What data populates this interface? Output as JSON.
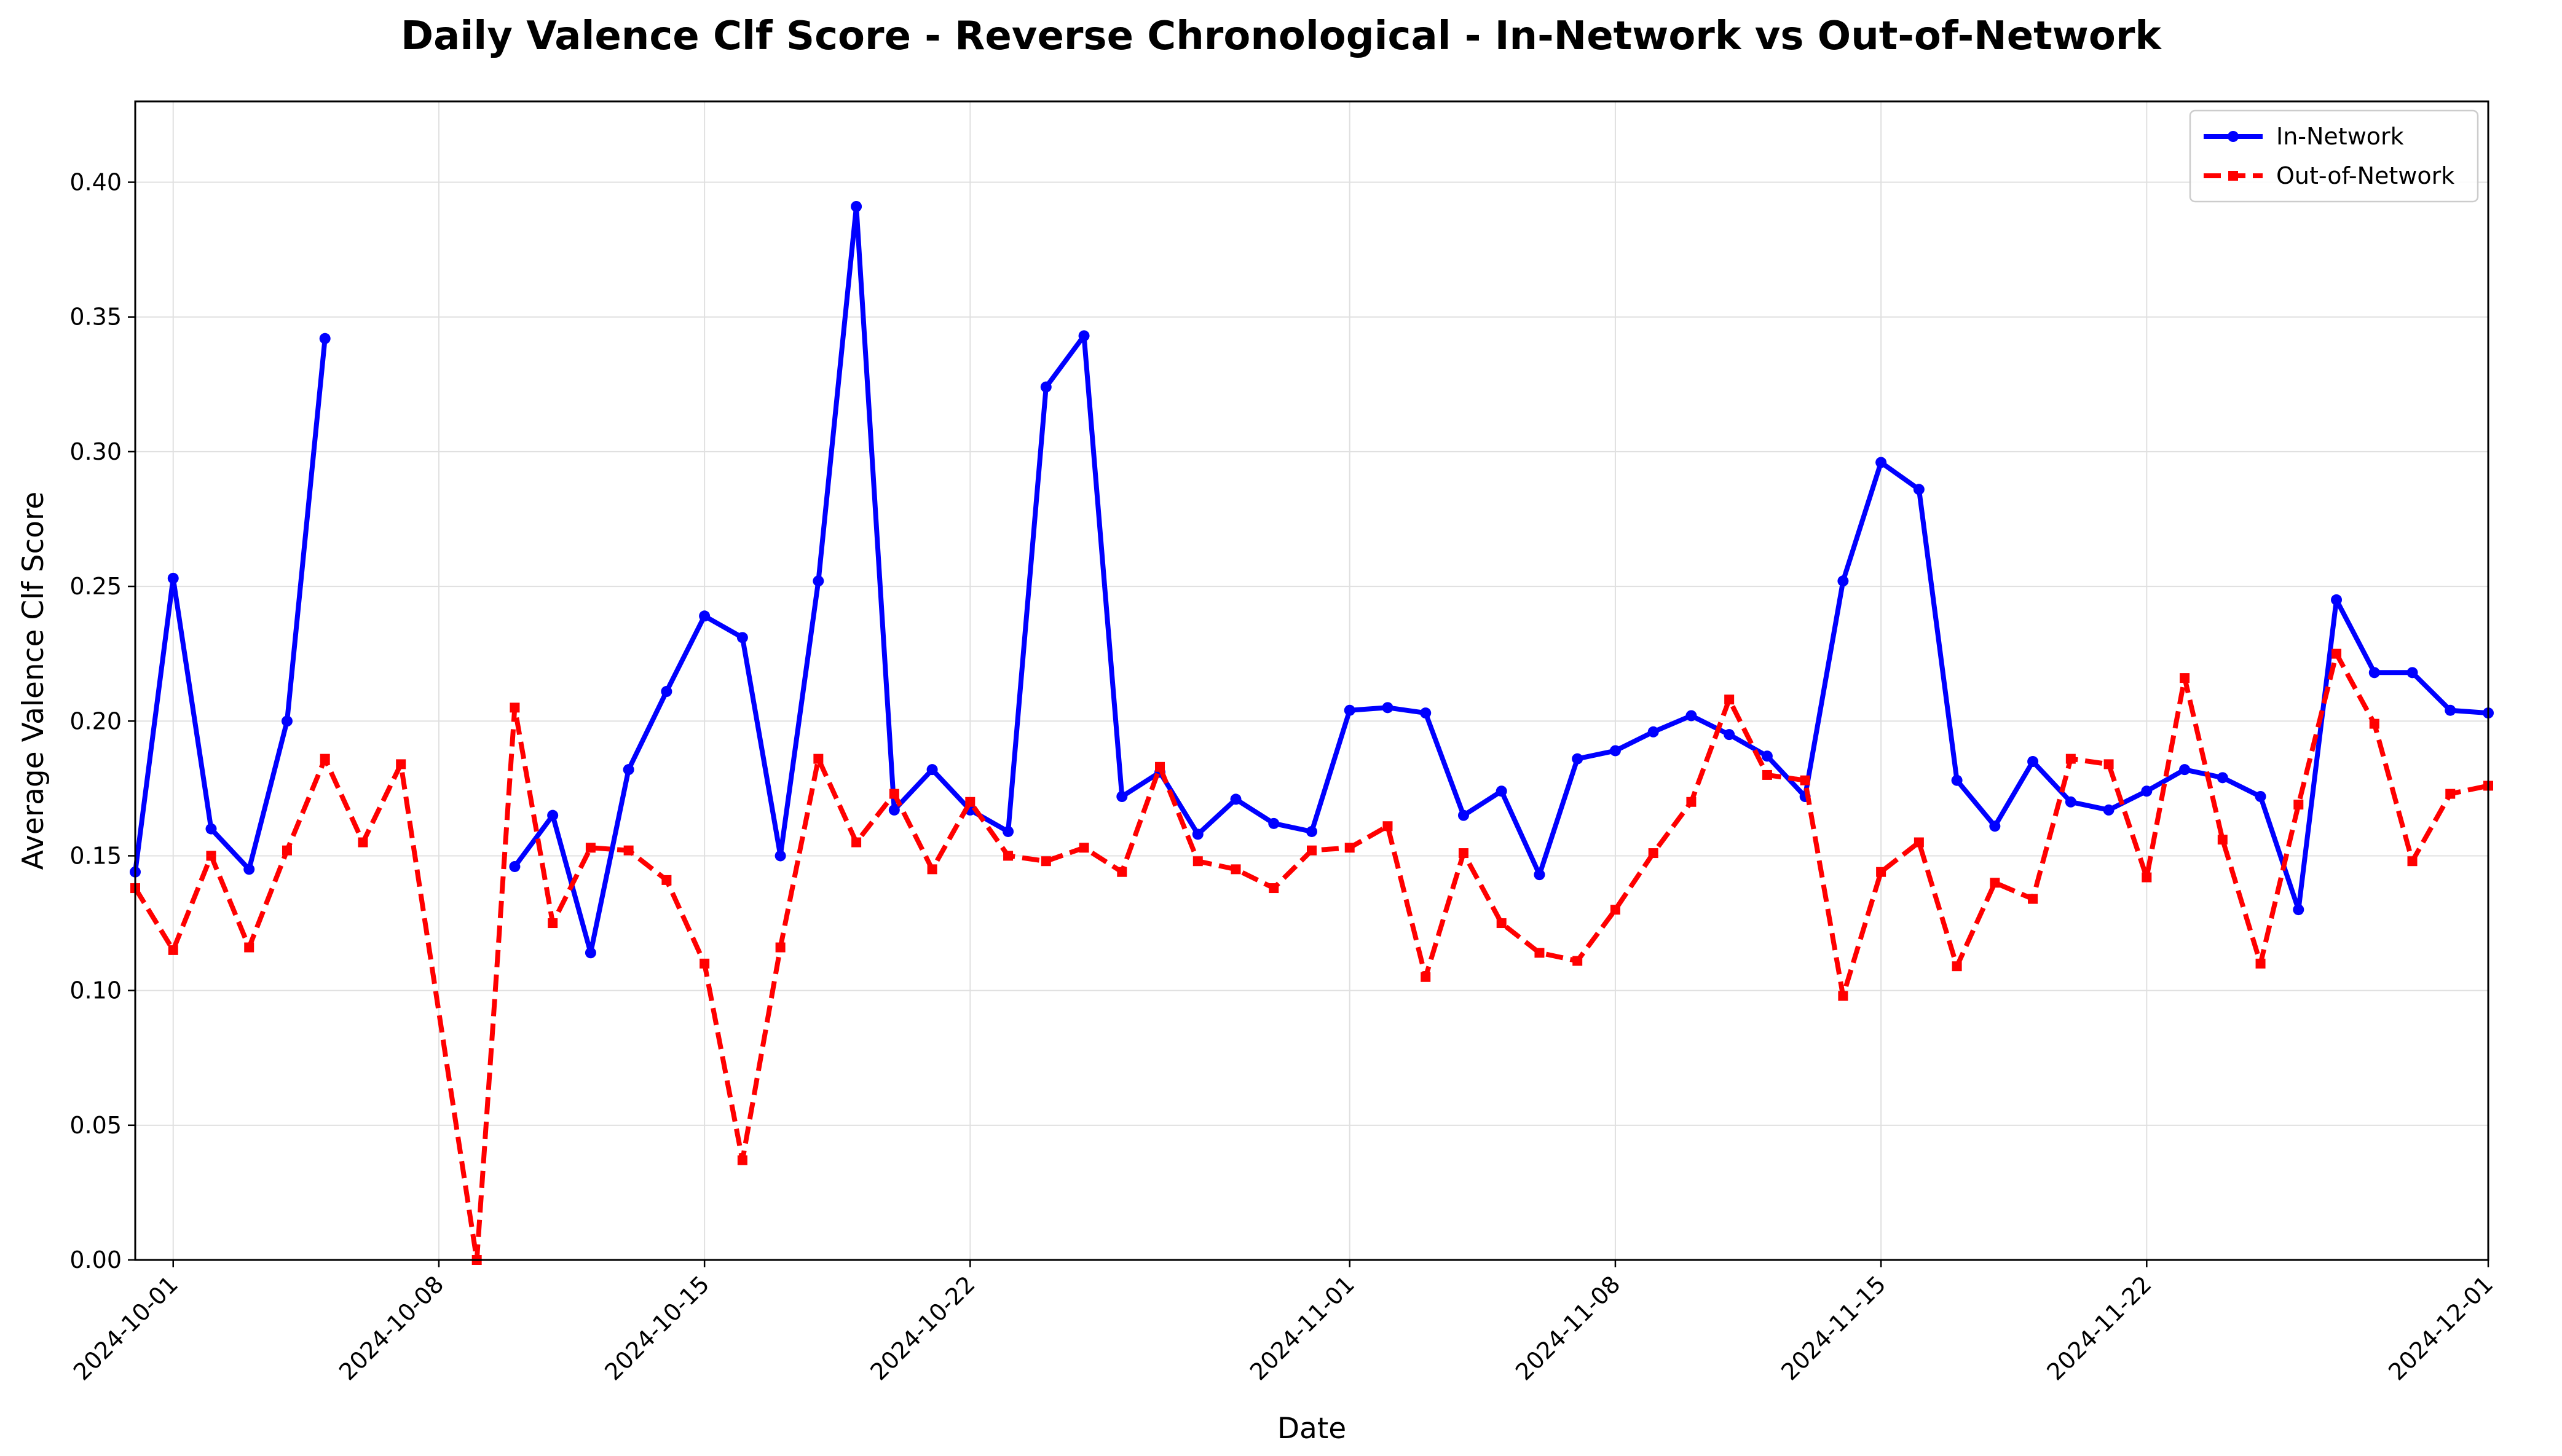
{
  "chart_data": {
    "type": "line",
    "title": "Daily Valence Clf Score - Reverse Chronological - In-Network vs Out-of-Network",
    "xlabel": "Date",
    "ylabel": "Average Valence Clf Score",
    "xlim": [
      "2024-09-30",
      "2024-12-01"
    ],
    "ylim": [
      0,
      0.43
    ],
    "x_ticks": [
      "2024-10-01",
      "2024-10-08",
      "2024-10-15",
      "2024-10-22",
      "2024-11-01",
      "2024-11-08",
      "2024-11-15",
      "2024-11-22",
      "2024-12-01"
    ],
    "y_ticks": [
      "0.00",
      "0.05",
      "0.10",
      "0.15",
      "0.20",
      "0.25",
      "0.30",
      "0.35",
      "0.40"
    ],
    "grid": true,
    "legend_position": "top-right",
    "series": [
      {
        "name": "In-Network",
        "color": "#0000ff",
        "line_style": "solid",
        "marker": "circle",
        "points": [
          [
            "2024-09-30",
            0.144
          ],
          [
            "2024-10-01",
            0.253
          ],
          [
            "2024-10-02",
            0.16
          ],
          [
            "2024-10-03",
            0.145
          ],
          [
            "2024-10-04",
            0.2
          ],
          [
            "2024-10-05",
            0.342
          ],
          null,
          [
            "2024-10-10",
            0.146
          ],
          [
            "2024-10-11",
            0.165
          ],
          [
            "2024-10-12",
            0.114
          ],
          [
            "2024-10-13",
            0.182
          ],
          [
            "2024-10-14",
            0.211
          ],
          [
            "2024-10-15",
            0.239
          ],
          [
            "2024-10-16",
            0.231
          ],
          [
            "2024-10-17",
            0.15
          ],
          [
            "2024-10-18",
            0.252
          ],
          [
            "2024-10-19",
            0.391
          ],
          [
            "2024-10-20",
            0.167
          ],
          [
            "2024-10-21",
            0.182
          ],
          [
            "2024-10-22",
            0.167
          ],
          [
            "2024-10-23",
            0.159
          ],
          [
            "2024-10-24",
            0.324
          ],
          [
            "2024-10-25",
            0.343
          ],
          [
            "2024-10-26",
            0.172
          ],
          [
            "2024-10-27",
            0.181
          ],
          [
            "2024-10-28",
            0.158
          ],
          [
            "2024-10-29",
            0.171
          ],
          [
            "2024-10-30",
            0.162
          ],
          [
            "2024-10-31",
            0.159
          ],
          [
            "2024-11-01",
            0.204
          ],
          [
            "2024-11-02",
            0.205
          ],
          [
            "2024-11-03",
            0.203
          ],
          [
            "2024-11-04",
            0.165
          ],
          [
            "2024-11-05",
            0.174
          ],
          [
            "2024-11-06",
            0.143
          ],
          [
            "2024-11-07",
            0.186
          ],
          [
            "2024-11-08",
            0.189
          ],
          [
            "2024-11-09",
            0.196
          ],
          [
            "2024-11-10",
            0.202
          ],
          [
            "2024-11-11",
            0.195
          ],
          [
            "2024-11-12",
            0.187
          ],
          [
            "2024-11-13",
            0.172
          ],
          [
            "2024-11-14",
            0.252
          ],
          [
            "2024-11-15",
            0.296
          ],
          [
            "2024-11-16",
            0.286
          ],
          [
            "2024-11-17",
            0.178
          ],
          [
            "2024-11-18",
            0.161
          ],
          [
            "2024-11-19",
            0.185
          ],
          [
            "2024-11-20",
            0.17
          ],
          [
            "2024-11-21",
            0.167
          ],
          [
            "2024-11-22",
            0.174
          ],
          [
            "2024-11-23",
            0.182
          ],
          [
            "2024-11-24",
            0.179
          ],
          [
            "2024-11-25",
            0.172
          ],
          [
            "2024-11-26",
            0.13
          ],
          [
            "2024-11-27",
            0.245
          ],
          [
            "2024-11-28",
            0.218
          ],
          [
            "2024-11-29",
            0.218
          ],
          [
            "2024-11-30",
            0.204
          ],
          [
            "2024-12-01",
            0.203
          ]
        ]
      },
      {
        "name": "Out-of-Network",
        "color": "#ff0000",
        "line_style": "dashed",
        "marker": "square",
        "points": [
          [
            "2024-09-30",
            0.138
          ],
          [
            "2024-10-01",
            0.115
          ],
          [
            "2024-10-02",
            0.15
          ],
          [
            "2024-10-03",
            0.116
          ],
          [
            "2024-10-04",
            0.152
          ],
          [
            "2024-10-05",
            0.186
          ],
          [
            "2024-10-06",
            0.155
          ],
          [
            "2024-10-07",
            0.184
          ],
          [
            "2024-10-09",
            0.0
          ],
          [
            "2024-10-10",
            0.205
          ],
          [
            "2024-10-11",
            0.125
          ],
          [
            "2024-10-12",
            0.153
          ],
          [
            "2024-10-13",
            0.152
          ],
          [
            "2024-10-14",
            0.141
          ],
          [
            "2024-10-15",
            0.11
          ],
          [
            "2024-10-16",
            0.037
          ],
          [
            "2024-10-17",
            0.116
          ],
          [
            "2024-10-18",
            0.186
          ],
          [
            "2024-10-19",
            0.155
          ],
          [
            "2024-10-20",
            0.173
          ],
          [
            "2024-10-21",
            0.145
          ],
          [
            "2024-10-22",
            0.17
          ],
          [
            "2024-10-23",
            0.15
          ],
          [
            "2024-10-24",
            0.148
          ],
          [
            "2024-10-25",
            0.153
          ],
          [
            "2024-10-26",
            0.144
          ],
          [
            "2024-10-27",
            0.183
          ],
          [
            "2024-10-28",
            0.148
          ],
          [
            "2024-10-29",
            0.145
          ],
          [
            "2024-10-30",
            0.138
          ],
          [
            "2024-10-31",
            0.152
          ],
          [
            "2024-11-01",
            0.153
          ],
          [
            "2024-11-02",
            0.161
          ],
          [
            "2024-11-03",
            0.105
          ],
          [
            "2024-11-04",
            0.151
          ],
          [
            "2024-11-05",
            0.125
          ],
          [
            "2024-11-06",
            0.114
          ],
          [
            "2024-11-07",
            0.111
          ],
          [
            "2024-11-08",
            0.13
          ],
          [
            "2024-11-09",
            0.151
          ],
          [
            "2024-11-10",
            0.17
          ],
          [
            "2024-11-11",
            0.208
          ],
          [
            "2024-11-12",
            0.18
          ],
          [
            "2024-11-13",
            0.178
          ],
          [
            "2024-11-14",
            0.098
          ],
          [
            "2024-11-15",
            0.144
          ],
          [
            "2024-11-16",
            0.155
          ],
          [
            "2024-11-17",
            0.109
          ],
          [
            "2024-11-18",
            0.14
          ],
          [
            "2024-11-19",
            0.134
          ],
          [
            "2024-11-20",
            0.186
          ],
          [
            "2024-11-21",
            0.184
          ],
          [
            "2024-11-22",
            0.142
          ],
          [
            "2024-11-23",
            0.216
          ],
          [
            "2024-11-24",
            0.156
          ],
          [
            "2024-11-25",
            0.11
          ],
          [
            "2024-11-26",
            0.169
          ],
          [
            "2024-11-27",
            0.225
          ],
          [
            "2024-11-28",
            0.199
          ],
          [
            "2024-11-29",
            0.148
          ],
          [
            "2024-11-30",
            0.173
          ],
          [
            "2024-12-01",
            0.176
          ]
        ]
      }
    ]
  }
}
